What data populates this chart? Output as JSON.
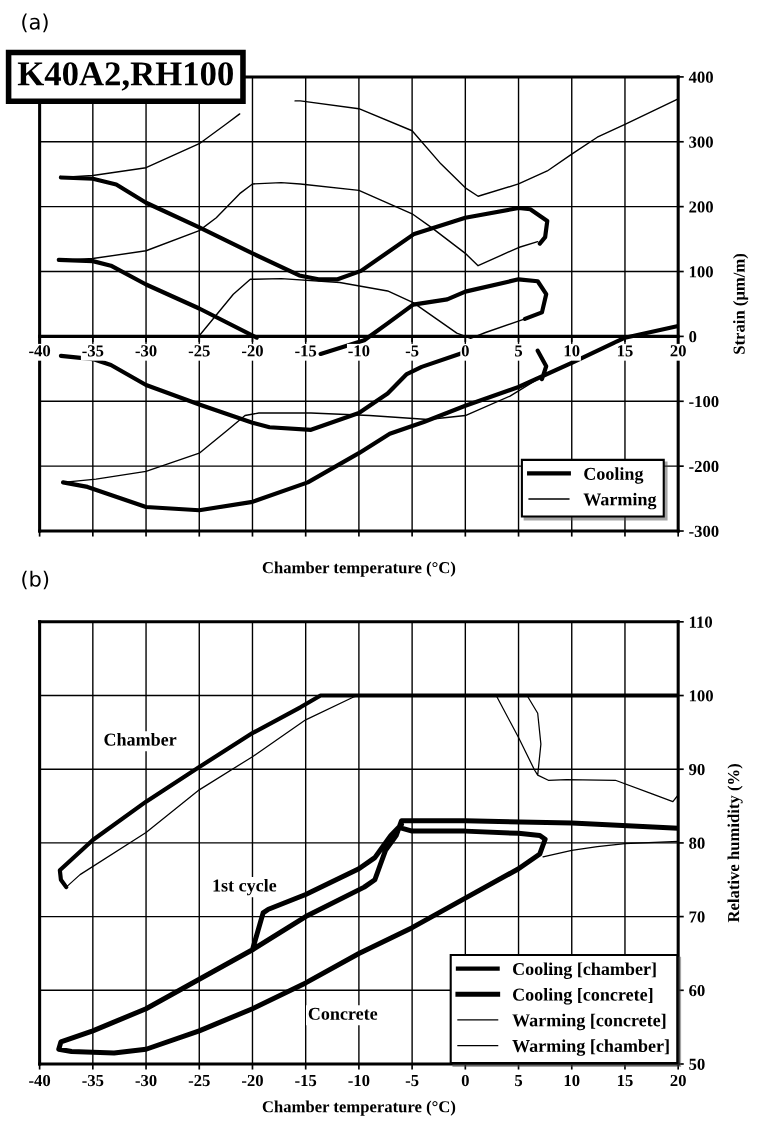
{
  "chart_data": [
    {
      "type": "line",
      "title": "(a)",
      "xlabel": "Chamber temperature (°C)",
      "ylabel": "Strain (μm/m)",
      "annotations": [
        "K40A2,RH100"
      ],
      "xlim": [
        -40,
        20
      ],
      "ylim": [
        -300,
        400
      ],
      "xticks": [
        -40,
        -35,
        -30,
        -25,
        -20,
        -15,
        -10,
        -5,
        0,
        5,
        10,
        15,
        20
      ],
      "yticks": [
        -300,
        -200,
        -100,
        0,
        100,
        200,
        300,
        400
      ],
      "grid": true,
      "legend": "bottom right",
      "line_style": "solid",
      "marker": "none",
      "series": [
        {
          "name": "Cooling",
          "color": "#000000",
          "x": [
            7,
            7.5,
            7.7,
            6.1,
            5,
            0,
            -4.8,
            -9.8,
            -12,
            -13.8,
            -15.6,
            -20,
            -25,
            -30,
            -32.8,
            -35,
            -38,
            null,
            5.6,
            7.2,
            7.6,
            6.8,
            5,
            0,
            -1.7,
            -4.9,
            -7.3,
            -9.5,
            -13.6,
            -15.4,
            -19.6,
            -25,
            -30,
            -33.3,
            -35,
            -38.2,
            null,
            7.2,
            7.6,
            6.8,
            5,
            0,
            -4.1,
            -5.5,
            -7.3,
            -10,
            -14.5,
            -18.4,
            -20,
            -25,
            -30,
            -33.3,
            -35,
            -38,
            null,
            20,
            15,
            10.1,
            5,
            0,
            -3.9,
            -7.1,
            -10,
            -14.8,
            -20,
            -25,
            -30,
            -35.5,
            -37.8
          ],
          "values": [
            143,
            153,
            178,
            196,
            198,
            183,
            158,
            101,
            88,
            88,
            94,
            128,
            168,
            206,
            234,
            243,
            245,
            null,
            27,
            37,
            65,
            85,
            88,
            69,
            57,
            49,
            20,
            -6,
            -27,
            null,
            -2,
            43,
            80,
            109,
            116,
            118,
            null,
            -66,
            -46,
            -22,
            null,
            -24,
            -47,
            -58,
            -88,
            -118,
            -144,
            -140,
            -133,
            -105,
            -75,
            -44,
            -35,
            -30,
            null,
            16,
            -2,
            -40,
            -78,
            -107,
            -132,
            -150,
            -180,
            -225,
            -255,
            -268,
            -263,
            -232,
            -225
          ]
        },
        {
          "name": "Warming",
          "color": "#000000",
          "x": [
            -37.8,
            -34.7,
            -30,
            -25,
            -22.3,
            -20.7,
            -19.4,
            -14.5,
            -9,
            -3.5,
            0,
            4.2,
            6.8,
            null,
            -25,
            -21.8,
            -20.2,
            -17.3,
            -11.8,
            -7.3,
            -4.9,
            -0.8,
            0.5,
            1.9,
            5.6,
            null,
            -38.1,
            -35,
            -30,
            -25,
            -23.4,
            -21.2,
            -20,
            -17.3,
            -15.5,
            -10,
            -5,
            -3.2,
            0,
            1.2,
            5,
            6.8,
            null,
            -38,
            -35,
            -30,
            -25,
            -22.5,
            -21.2,
            null,
            -16,
            -15.5,
            -10,
            -5,
            -2.3,
            0,
            1.2,
            5,
            7.7,
            10,
            12.4,
            15,
            20
          ],
          "values": [
            -225,
            -220,
            -208,
            -180,
            -144,
            -122,
            -118,
            -118,
            -122,
            -128,
            -122,
            -92,
            -66,
            null,
            1,
            65,
            88,
            89,
            83,
            70,
            52,
            5,
            -3,
            6,
            27,
            null,
            117,
            120,
            132,
            163,
            183,
            220,
            235,
            237,
            235,
            225,
            189,
            168,
            128,
            109,
            137,
            146,
            null,
            245,
            248,
            260,
            297,
            327,
            343,
            null,
            363,
            363,
            351,
            317,
            266,
            229,
            216,
            235,
            255,
            281,
            307,
            327,
            366
          ]
        }
      ]
    },
    {
      "type": "line",
      "title": "(b)",
      "xlabel": "Chamber temperature (°C)",
      "ylabel": "Relative humidity (%)",
      "annotations": [
        "Chamber",
        "1st cycle",
        "Concrete"
      ],
      "xlim": [
        -40,
        20
      ],
      "ylim": [
        50,
        110
      ],
      "xticks": [
        -40,
        -35,
        -30,
        -25,
        -20,
        -15,
        -10,
        -5,
        0,
        5,
        10,
        15,
        20
      ],
      "yticks": [
        50,
        60,
        70,
        80,
        90,
        100,
        110
      ],
      "grid": true,
      "legend": "bottom right",
      "line_style": "solid",
      "marker": "none",
      "series": [
        {
          "name": "Cooling [chamber]",
          "color": "#000000",
          "x": [
            20,
            10,
            0,
            -10,
            -13.6,
            -15.5,
            -20,
            -25,
            -30,
            -35,
            -38.1,
            -38,
            -37.5
          ],
          "values": [
            100,
            100,
            100,
            100,
            100,
            98.4,
            94.9,
            90.3,
            85.6,
            80.4,
            76.3,
            75,
            74
          ]
        },
        {
          "name": "Cooling [concrete]",
          "color": "#000000",
          "x": [
            20,
            10,
            0,
            -6,
            -6.5,
            -7.5,
            -8,
            -8.5,
            -9.5,
            -15,
            -20,
            -25,
            -30,
            -35,
            -38,
            -38.2,
            -37,
            -33,
            -30,
            -25,
            -20,
            -15,
            -10,
            -5,
            0,
            5,
            7,
            7.5,
            7,
            5,
            0,
            -5,
            -6,
            null,
            -20,
            -19.5,
            -19,
            -18.5,
            -15,
            -10,
            -8.5,
            -8,
            -7,
            -6
          ],
          "values": [
            82,
            82.7,
            83,
            83,
            81,
            79,
            77,
            75,
            74,
            70,
            65.5,
            61.5,
            57.5,
            54.5,
            53,
            52,
            51.7,
            51.5,
            52,
            54.5,
            57.5,
            61,
            65,
            68.5,
            72.5,
            76.5,
            78.5,
            80.5,
            81,
            81.3,
            81.6,
            81.6,
            82,
            null,
            65.5,
            68,
            70.5,
            71,
            73,
            76.5,
            78,
            79,
            81,
            82.5
          ]
        },
        {
          "name": "Warming [concrete]",
          "color": "#000000",
          "x": [
            7.3,
            10,
            12.4,
            15,
            20
          ],
          "values": [
            78.1,
            79,
            79.5,
            79.9,
            80.2
          ]
        },
        {
          "name": "Warming [chamber]",
          "color": "#000000",
          "x": [
            -37.5,
            -36.2,
            -30,
            -25,
            -20,
            -15,
            -10.5,
            -10,
            2.9,
            5,
            6.5,
            6.8,
            7.1,
            6.8,
            5.8,
            null,
            6.8,
            7.8,
            9.5,
            14.1,
            17.3,
            19.5,
            20,
            20
          ],
          "values": [
            74,
            75.7,
            81.4,
            87.2,
            91.7,
            96.7,
            99.8,
            100,
            100,
            94.3,
            89.9,
            89.2,
            93.4,
            97.6,
            100,
            null,
            89.2,
            88.5,
            88.6,
            88.5,
            86.8,
            85.6,
            86.5,
            90
          ]
        }
      ]
    }
  ]
}
